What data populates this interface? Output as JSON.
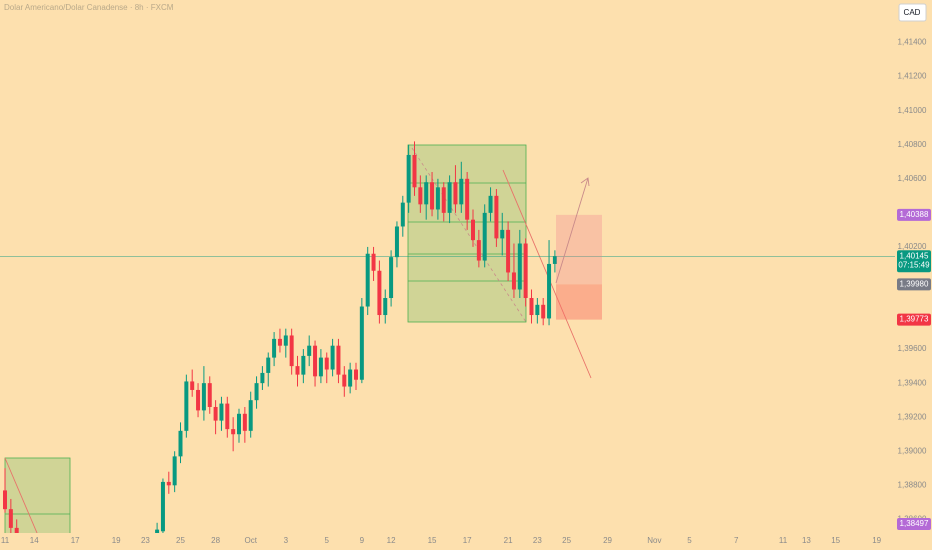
{
  "chart_data": {
    "type": "candlestick",
    "title": "Dolar Americano/Dolar Canadense · 8h · FXCM",
    "currency": "CAD",
    "categories": [
      "11",
      null,
      null,
      null,
      null,
      "14",
      null,
      null,
      null,
      null,
      null,
      null,
      "17",
      null,
      null,
      null,
      null,
      null,
      null,
      "19",
      null,
      null,
      null,
      null,
      "23",
      null,
      null,
      null,
      null,
      null,
      "25",
      null,
      null,
      null,
      null,
      null,
      "28",
      null,
      null,
      null,
      null,
      null,
      "Oct",
      null,
      null,
      null,
      null,
      null,
      "3",
      null,
      null,
      null,
      null,
      null,
      null,
      "5",
      null,
      null,
      null,
      null,
      null,
      "9",
      null,
      null,
      null,
      null,
      "12",
      null,
      null,
      null,
      null,
      null,
      null,
      "15",
      null,
      null,
      null,
      null,
      null,
      "17",
      null,
      null,
      null,
      null,
      null,
      null,
      "21",
      null,
      null,
      null,
      null,
      "23",
      null,
      null,
      null,
      null,
      "25",
      null,
      null,
      null,
      null,
      null,
      null,
      "29",
      null,
      null,
      null,
      null,
      null,
      null,
      null,
      "Nov",
      null,
      null,
      null,
      null,
      null,
      "5",
      null,
      null,
      null,
      null,
      null,
      null,
      null,
      "7",
      null,
      null,
      null,
      null,
      null,
      null,
      null,
      "11",
      null,
      null,
      null,
      "13",
      null,
      null,
      null,
      null,
      "15",
      null,
      null,
      null,
      null,
      null,
      null,
      "19",
      null,
      null
    ],
    "open": [
      1.3877,
      1.3866,
      1.3855,
      null,
      null,
      null,
      null,
      null,
      null,
      null,
      null,
      null,
      null,
      null,
      null,
      null,
      null,
      null,
      null,
      null,
      null,
      null,
      null,
      null,
      null,
      null,
      1.3852,
      1.3853,
      1.3882,
      1.388,
      1.3897,
      1.3912,
      1.3941,
      1.3936,
      1.3924,
      1.394,
      1.3926,
      1.3918,
      1.3928,
      1.3913,
      1.391,
      1.3922,
      1.3912,
      1.393,
      1.394,
      1.3946,
      1.3955,
      1.3966,
      1.3962,
      1.3968,
      1.395,
      1.3945,
      1.3956,
      1.3962,
      1.3944,
      1.3955,
      1.3948,
      1.3962,
      1.3945,
      1.3938,
      1.3948,
      1.3942,
      1.3985,
      1.4016,
      1.4006,
      1.398,
      1.399,
      1.4014,
      1.4032,
      1.4046,
      1.4074,
      1.4055,
      1.4045,
      1.4058,
      1.4042,
      1.4055,
      1.404,
      1.4058,
      1.4045,
      1.406,
      1.4036,
      1.4024,
      1.4012,
      1.404,
      1.405,
      1.4025,
      1.403,
      1.4005,
      1.3995,
      1.4022,
      1.399,
      1.398,
      1.3986,
      1.3978,
      1.401,
      null,
      null,
      null,
      null,
      null,
      null,
      null,
      null,
      null,
      null,
      null,
      null,
      null,
      null,
      null,
      null,
      null,
      null,
      null,
      null,
      null,
      null,
      null,
      null,
      null,
      null,
      null,
      null,
      null,
      null,
      null,
      null,
      null,
      null,
      null,
      null,
      null,
      null,
      null,
      null,
      null,
      null,
      null,
      null,
      null,
      null,
      null,
      null,
      null,
      null,
      null,
      null,
      null,
      null,
      null,
      null,
      null
    ],
    "high": [
      1.389,
      1.3872,
      1.386,
      null,
      null,
      null,
      null,
      null,
      null,
      null,
      null,
      null,
      null,
      null,
      null,
      null,
      null,
      null,
      null,
      null,
      null,
      null,
      null,
      null,
      null,
      null,
      1.3858,
      1.3884,
      1.3888,
      1.39,
      1.3917,
      1.3945,
      1.3948,
      1.394,
      1.395,
      1.3944,
      1.393,
      1.3932,
      1.3932,
      1.392,
      1.3925,
      1.3926,
      1.3935,
      1.3944,
      1.395,
      1.3958,
      1.397,
      1.3972,
      1.3972,
      1.3972,
      1.3956,
      1.396,
      1.3968,
      1.3965,
      1.396,
      1.3958,
      1.3966,
      1.3966,
      1.395,
      1.3952,
      1.3952,
      1.399,
      1.402,
      1.402,
      1.4012,
      1.3995,
      1.4018,
      1.4035,
      1.405,
      1.408,
      1.4082,
      1.4062,
      1.4062,
      1.4064,
      1.406,
      1.4058,
      1.4062,
      1.4068,
      1.407,
      1.4064,
      1.4042,
      1.403,
      1.4045,
      1.4055,
      1.4054,
      1.404,
      1.4035,
      1.4022,
      1.403,
      1.4025,
      1.3995,
      1.399,
      1.399,
      1.4024,
      1.4018,
      null,
      null,
      null,
      null,
      null,
      null,
      null,
      null,
      null,
      null,
      null,
      null,
      null,
      null,
      null,
      null,
      null,
      null,
      null,
      null,
      null,
      null,
      null,
      null,
      null,
      null,
      null,
      null,
      null,
      null,
      null,
      null,
      null,
      null,
      null,
      null,
      null,
      null,
      null,
      null,
      null,
      null,
      null,
      null,
      null,
      null,
      null,
      null,
      null,
      null,
      null,
      null,
      null,
      null,
      null,
      null,
      null
    ],
    "low": [
      1.3864,
      1.3852,
      1.3846,
      null,
      null,
      null,
      null,
      null,
      null,
      null,
      null,
      null,
      null,
      null,
      null,
      null,
      null,
      null,
      null,
      null,
      null,
      null,
      null,
      null,
      null,
      null,
      1.3846,
      1.385,
      1.3875,
      1.3876,
      1.3893,
      1.3908,
      1.3932,
      1.392,
      1.3918,
      1.3922,
      1.391,
      1.3912,
      1.3908,
      1.39,
      1.3905,
      1.3905,
      1.3908,
      1.3925,
      1.3936,
      1.3938,
      1.395,
      1.3958,
      1.3955,
      1.3945,
      1.3938,
      1.394,
      1.395,
      1.3938,
      1.394,
      1.394,
      1.3944,
      1.394,
      1.3932,
      1.3934,
      1.3936,
      1.394,
      1.398,
      1.4,
      1.3975,
      1.3975,
      1.3985,
      1.4008,
      1.4026,
      1.404,
      1.405,
      1.404,
      1.4036,
      1.4038,
      1.4036,
      1.4035,
      1.4034,
      1.404,
      1.404,
      1.403,
      1.402,
      1.4008,
      1.4008,
      1.4035,
      1.402,
      1.4015,
      1.4,
      1.399,
      1.399,
      1.3985,
      1.3975,
      1.3975,
      1.3974,
      1.3974,
      1.4005,
      null,
      null,
      null,
      null,
      null,
      null,
      null,
      null,
      null,
      null,
      null,
      null,
      null,
      null,
      null,
      null,
      null,
      null,
      null,
      null,
      null,
      null,
      null,
      null,
      null,
      null,
      null,
      null,
      null,
      null,
      null,
      null,
      null,
      null,
      null,
      null,
      null,
      null,
      null,
      null,
      null,
      null,
      null,
      null,
      null,
      null,
      null,
      null,
      null,
      null,
      null,
      null,
      null,
      null,
      null,
      null,
      null
    ],
    "close": [
      1.3866,
      1.3855,
      1.3849,
      null,
      null,
      null,
      null,
      null,
      null,
      null,
      null,
      null,
      null,
      null,
      null,
      null,
      null,
      null,
      null,
      null,
      null,
      null,
      null,
      null,
      null,
      null,
      1.3854,
      1.3882,
      1.388,
      1.3897,
      1.3912,
      1.3941,
      1.3936,
      1.3924,
      1.394,
      1.3926,
      1.3918,
      1.3928,
      1.3913,
      1.391,
      1.3922,
      1.3912,
      1.393,
      1.394,
      1.3946,
      1.3955,
      1.3966,
      1.3962,
      1.3968,
      1.395,
      1.3945,
      1.3956,
      1.3962,
      1.3944,
      1.3955,
      1.3948,
      1.3962,
      1.3945,
      1.3938,
      1.3948,
      1.3942,
      1.3985,
      1.4016,
      1.4006,
      1.398,
      1.399,
      1.4014,
      1.4032,
      1.4046,
      1.4074,
      1.4055,
      1.4045,
      1.4058,
      1.4042,
      1.4055,
      1.404,
      1.4058,
      1.4045,
      1.406,
      1.4036,
      1.4024,
      1.4012,
      1.404,
      1.405,
      1.4025,
      1.403,
      1.4005,
      1.3995,
      1.4022,
      1.399,
      1.398,
      1.3986,
      1.3978,
      1.401,
      1.40145,
      null,
      null,
      null,
      null,
      null,
      null,
      null,
      null,
      null,
      null,
      null,
      null,
      null,
      null,
      null,
      null,
      null,
      null,
      null,
      null,
      null,
      null,
      null,
      null,
      null,
      null,
      null,
      null,
      null,
      null,
      null,
      null,
      null,
      null,
      null,
      null,
      null,
      null,
      null,
      null,
      null,
      null,
      null,
      null,
      null,
      null,
      null,
      null,
      null,
      null,
      null,
      null,
      null,
      null,
      null,
      null,
      null
    ],
    "up_color": "#089981",
    "down_color": "#f23645",
    "ylim": [
      1.3852,
      1.4165
    ],
    "yticks": [
      {
        "value": 1.414,
        "label": "1,41400"
      },
      {
        "value": 1.412,
        "label": "1,41200"
      },
      {
        "value": 1.41,
        "label": "1,41000"
      },
      {
        "value": 1.408,
        "label": "1,40800"
      },
      {
        "value": 1.406,
        "label": "1,40600"
      },
      {
        "value": 1.402,
        "label": "1,40200"
      },
      {
        "value": 1.396,
        "label": "1,39600"
      },
      {
        "value": 1.394,
        "label": "1,39400"
      },
      {
        "value": 1.392,
        "label": "1,39200"
      },
      {
        "value": 1.39,
        "label": "1,39000"
      },
      {
        "value": 1.388,
        "label": "1,38800"
      },
      {
        "value": 1.386,
        "label": "1,38600"
      }
    ],
    "grid": false,
    "current_price": {
      "value": 1.40145,
      "label": "1,40145",
      "countdown": "07:15:49",
      "color": "#089981"
    },
    "price_labels": [
      {
        "value": 1.40388,
        "label": "1,40388",
        "color": "#b46ad6"
      },
      {
        "value": 1.3998,
        "label": "1,39980",
        "color": "#787b86"
      },
      {
        "value": 1.39773,
        "label": "1,39773",
        "color": "#f23645"
      },
      {
        "value": 1.38497,
        "label": "1,38497",
        "color": "#b46ad6"
      }
    ]
  }
}
